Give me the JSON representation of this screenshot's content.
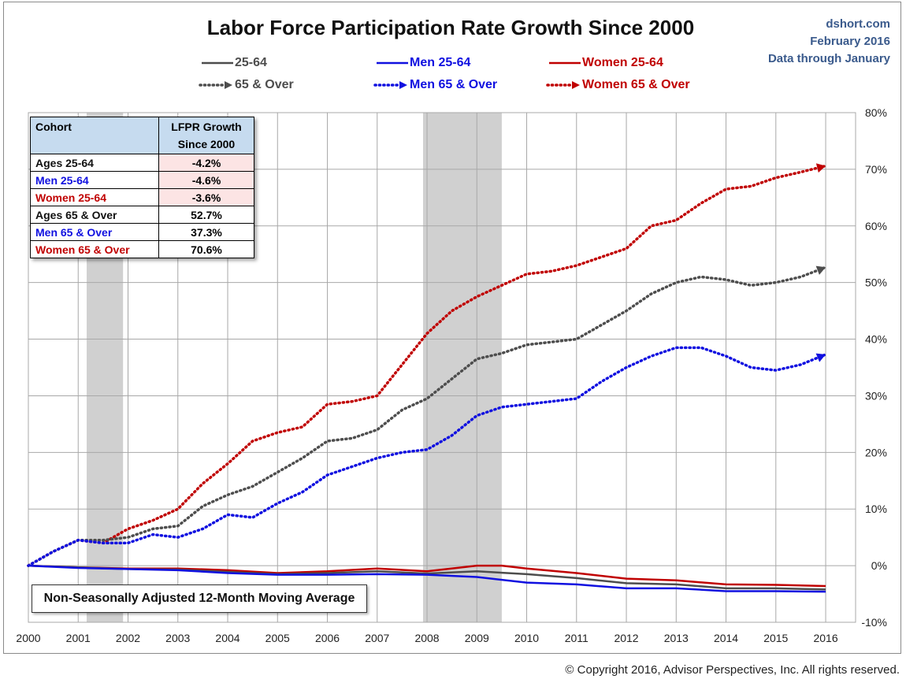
{
  "header": {
    "title": "Labor Force Participation Rate Growth Since 2000",
    "credit_site": "dshort.com",
    "credit_date": "February 2016",
    "credit_data": "Data through January"
  },
  "legend": [
    {
      "label": "25-64",
      "color": "#4d4d4d",
      "style": "solid"
    },
    {
      "label": "Men 25-64",
      "color": "#1010e0",
      "style": "solid"
    },
    {
      "label": "Women 25-64",
      "color": "#c00000",
      "style": "solid"
    },
    {
      "label": "65 & Over",
      "color": "#4d4d4d",
      "style": "dotted-arrow"
    },
    {
      "label": "Men 65 & Over",
      "color": "#1010e0",
      "style": "dotted-arrow"
    },
    {
      "label": "Women 65 & Over",
      "color": "#c00000",
      "style": "dotted-arrow"
    }
  ],
  "table": {
    "header_cohort": "Cohort",
    "header_growth_line1": "LFPR Growth",
    "header_growth_line2": "Since 2000",
    "rows": [
      {
        "name": "Ages 25-64",
        "value": "-4.2%",
        "color": "#111111",
        "bg": "#fce4e4"
      },
      {
        "name": "Men 25-64",
        "value": "-4.6%",
        "color": "#1010e0",
        "bg": "#fce4e4"
      },
      {
        "name": "Women 25-64",
        "value": "-3.6%",
        "color": "#c00000",
        "bg": "#fce4e4"
      },
      {
        "name": "Ages 65  & Over",
        "value": "52.7%",
        "color": "#111111",
        "bg": "#ffffff"
      },
      {
        "name": "Men 65  & Over",
        "value": "37.3%",
        "color": "#1010e0",
        "bg": "#ffffff"
      },
      {
        "name": "Women 65 & Over",
        "value": "70.6%",
        "color": "#c00000",
        "bg": "#ffffff"
      }
    ]
  },
  "note": "Non-Seasonally Adjusted 12-Month Moving Average",
  "copyright": "© Copyright 2016, Advisor Perspectives, Inc. All rights reserved.",
  "chart_data": {
    "type": "line",
    "title": "Labor Force Participation Rate Growth Since 2000",
    "xlabel": "",
    "ylabel": "",
    "xlim": [
      2000,
      2016.1
    ],
    "ylim": [
      -10,
      80
    ],
    "x_ticks": [
      2000,
      2001,
      2002,
      2003,
      2004,
      2005,
      2006,
      2007,
      2008,
      2009,
      2010,
      2011,
      2012,
      2013,
      2014,
      2015,
      2016
    ],
    "x_tick_labels": [
      "2000",
      "2001",
      "2002",
      "2003",
      "2004",
      "2005",
      "2006",
      "2007",
      "2008",
      "2009",
      "2010",
      "2011",
      "2012",
      "2013",
      "2014",
      "2015",
      "2016"
    ],
    "y_ticks": [
      -10,
      0,
      10,
      20,
      30,
      40,
      50,
      60,
      70,
      80
    ],
    "y_tick_labels": [
      "-10%",
      "0%",
      "10%",
      "20%",
      "30%",
      "40%",
      "50%",
      "60%",
      "70%",
      "80%"
    ],
    "grid": true,
    "recessions": [
      [
        2001.17,
        2001.9
      ],
      [
        2007.92,
        2009.5
      ]
    ],
    "series": [
      {
        "name": "Women 65 & Over",
        "color": "#c00000",
        "dash": "dotted",
        "arrow": true,
        "x": [
          2000,
          2000.5,
          2001,
          2001.5,
          2002,
          2002.5,
          2003,
          2003.5,
          2004,
          2004.5,
          2005,
          2005.5,
          2006,
          2006.5,
          2007,
          2007.5,
          2008,
          2008.5,
          2009,
          2009.5,
          2010,
          2010.5,
          2011,
          2011.5,
          2012,
          2012.5,
          2013,
          2013.5,
          2014,
          2014.5,
          2015,
          2015.5,
          2016
        ],
        "values": [
          0,
          2.5,
          4.5,
          4.0,
          6.5,
          8.0,
          10.0,
          14.5,
          18.0,
          22.0,
          23.5,
          24.5,
          28.5,
          29.0,
          30.0,
          35.5,
          41.0,
          45.0,
          47.5,
          49.5,
          51.5,
          52.0,
          53.0,
          54.5,
          56.0,
          60.0,
          61.0,
          64.0,
          66.5,
          67.0,
          68.5,
          69.5,
          70.6
        ]
      },
      {
        "name": "65 & Over",
        "color": "#4d4d4d",
        "dash": "dotted",
        "arrow": true,
        "x": [
          2000,
          2000.5,
          2001,
          2001.5,
          2002,
          2002.5,
          2003,
          2003.5,
          2004,
          2004.5,
          2005,
          2005.5,
          2006,
          2006.5,
          2007,
          2007.5,
          2008,
          2008.5,
          2009,
          2009.5,
          2010,
          2010.5,
          2011,
          2011.5,
          2012,
          2012.5,
          2013,
          2013.5,
          2014,
          2014.5,
          2015,
          2015.5,
          2016
        ],
        "values": [
          0,
          2.5,
          4.5,
          4.5,
          5.0,
          6.5,
          7.0,
          10.5,
          12.5,
          14.0,
          16.5,
          19.0,
          22.0,
          22.5,
          24.0,
          27.5,
          29.5,
          33.0,
          36.5,
          37.5,
          39.0,
          39.5,
          40.0,
          42.5,
          45.0,
          48.0,
          50.0,
          51.0,
          50.5,
          49.5,
          50.0,
          51.0,
          52.7
        ]
      },
      {
        "name": "Men 65 & Over",
        "color": "#1010e0",
        "dash": "dotted",
        "arrow": true,
        "x": [
          2000,
          2000.5,
          2001,
          2001.5,
          2002,
          2002.5,
          2003,
          2003.5,
          2004,
          2004.5,
          2005,
          2005.5,
          2006,
          2006.5,
          2007,
          2007.5,
          2008,
          2008.5,
          2009,
          2009.5,
          2010,
          2010.5,
          2011,
          2011.5,
          2012,
          2012.5,
          2013,
          2013.5,
          2014,
          2014.5,
          2015,
          2015.5,
          2016
        ],
        "values": [
          0,
          2.5,
          4.5,
          4.0,
          4.0,
          5.5,
          5.0,
          6.5,
          9.0,
          8.5,
          11.0,
          13.0,
          16.0,
          17.5,
          19.0,
          20.0,
          20.5,
          23.0,
          26.5,
          28.0,
          28.5,
          29.0,
          29.5,
          32.5,
          35.0,
          37.0,
          38.5,
          38.5,
          37.0,
          35.0,
          34.5,
          35.5,
          37.3
        ]
      },
      {
        "name": "Women 25-64",
        "color": "#c00000",
        "dash": "solid",
        "arrow": false,
        "x": [
          2000,
          2001,
          2002,
          2003,
          2004,
          2005,
          2006,
          2007,
          2008,
          2009,
          2009.5,
          2010,
          2011,
          2012,
          2013,
          2014,
          2015,
          2016
        ],
        "values": [
          0,
          -0.3,
          -0.5,
          -0.5,
          -0.8,
          -1.3,
          -1.0,
          -0.5,
          -1.0,
          0.0,
          0.0,
          -0.5,
          -1.3,
          -2.3,
          -2.6,
          -3.3,
          -3.4,
          -3.6
        ]
      },
      {
        "name": "25-64",
        "color": "#4d4d4d",
        "dash": "solid",
        "arrow": false,
        "x": [
          2000,
          2001,
          2002,
          2003,
          2004,
          2005,
          2006,
          2007,
          2008,
          2009,
          2010,
          2011,
          2012,
          2013,
          2014,
          2015,
          2016
        ],
        "values": [
          0,
          -0.3,
          -0.6,
          -0.7,
          -1.1,
          -1.5,
          -1.3,
          -1.0,
          -1.4,
          -1.0,
          -1.5,
          -2.2,
          -3.1,
          -3.3,
          -4.0,
          -4.0,
          -4.2
        ]
      },
      {
        "name": "Men 25-64",
        "color": "#1010e0",
        "dash": "solid",
        "arrow": false,
        "x": [
          2000,
          2001,
          2002,
          2003,
          2004,
          2005,
          2006,
          2007,
          2008,
          2009,
          2010,
          2011,
          2012,
          2013,
          2014,
          2015,
          2016
        ],
        "values": [
          0,
          -0.4,
          -0.6,
          -0.8,
          -1.3,
          -1.6,
          -1.6,
          -1.5,
          -1.6,
          -2.0,
          -3.0,
          -3.3,
          -4.0,
          -4.0,
          -4.5,
          -4.5,
          -4.6
        ]
      }
    ]
  }
}
